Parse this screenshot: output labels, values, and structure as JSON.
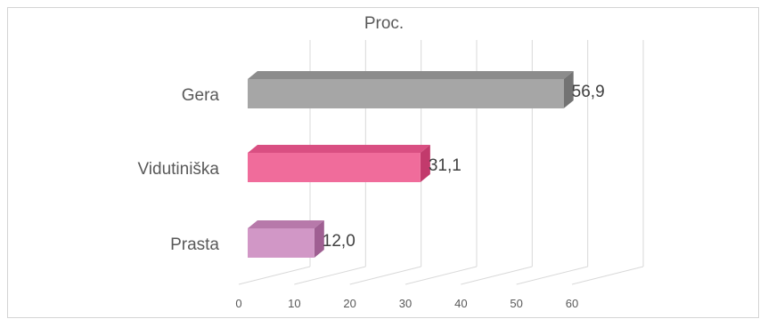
{
  "chart_data": {
    "type": "bar",
    "orientation": "horizontal",
    "style": "3d",
    "title": "Proc.",
    "categories": [
      "Gera",
      "Vidutiniška",
      "Prasta"
    ],
    "values": [
      56.9,
      31.1,
      12.0
    ],
    "data_labels": [
      "56,9",
      "31,1",
      "12,0"
    ],
    "xticks": [
      "0",
      "10",
      "20",
      "30",
      "40",
      "50",
      "60"
    ],
    "xlim": [
      0,
      60
    ],
    "grid": true,
    "legend": "none",
    "colors": {
      "Gera": {
        "front": "#a6a6a6",
        "top": "#8c8c8c",
        "side": "#737373"
      },
      "Vidutiniška": {
        "front": "#f06c9b",
        "top": "#d94f82",
        "side": "#c23a6c"
      },
      "Prasta": {
        "front": "#d197c6",
        "top": "#b779aa",
        "side": "#9f5f92"
      }
    }
  }
}
